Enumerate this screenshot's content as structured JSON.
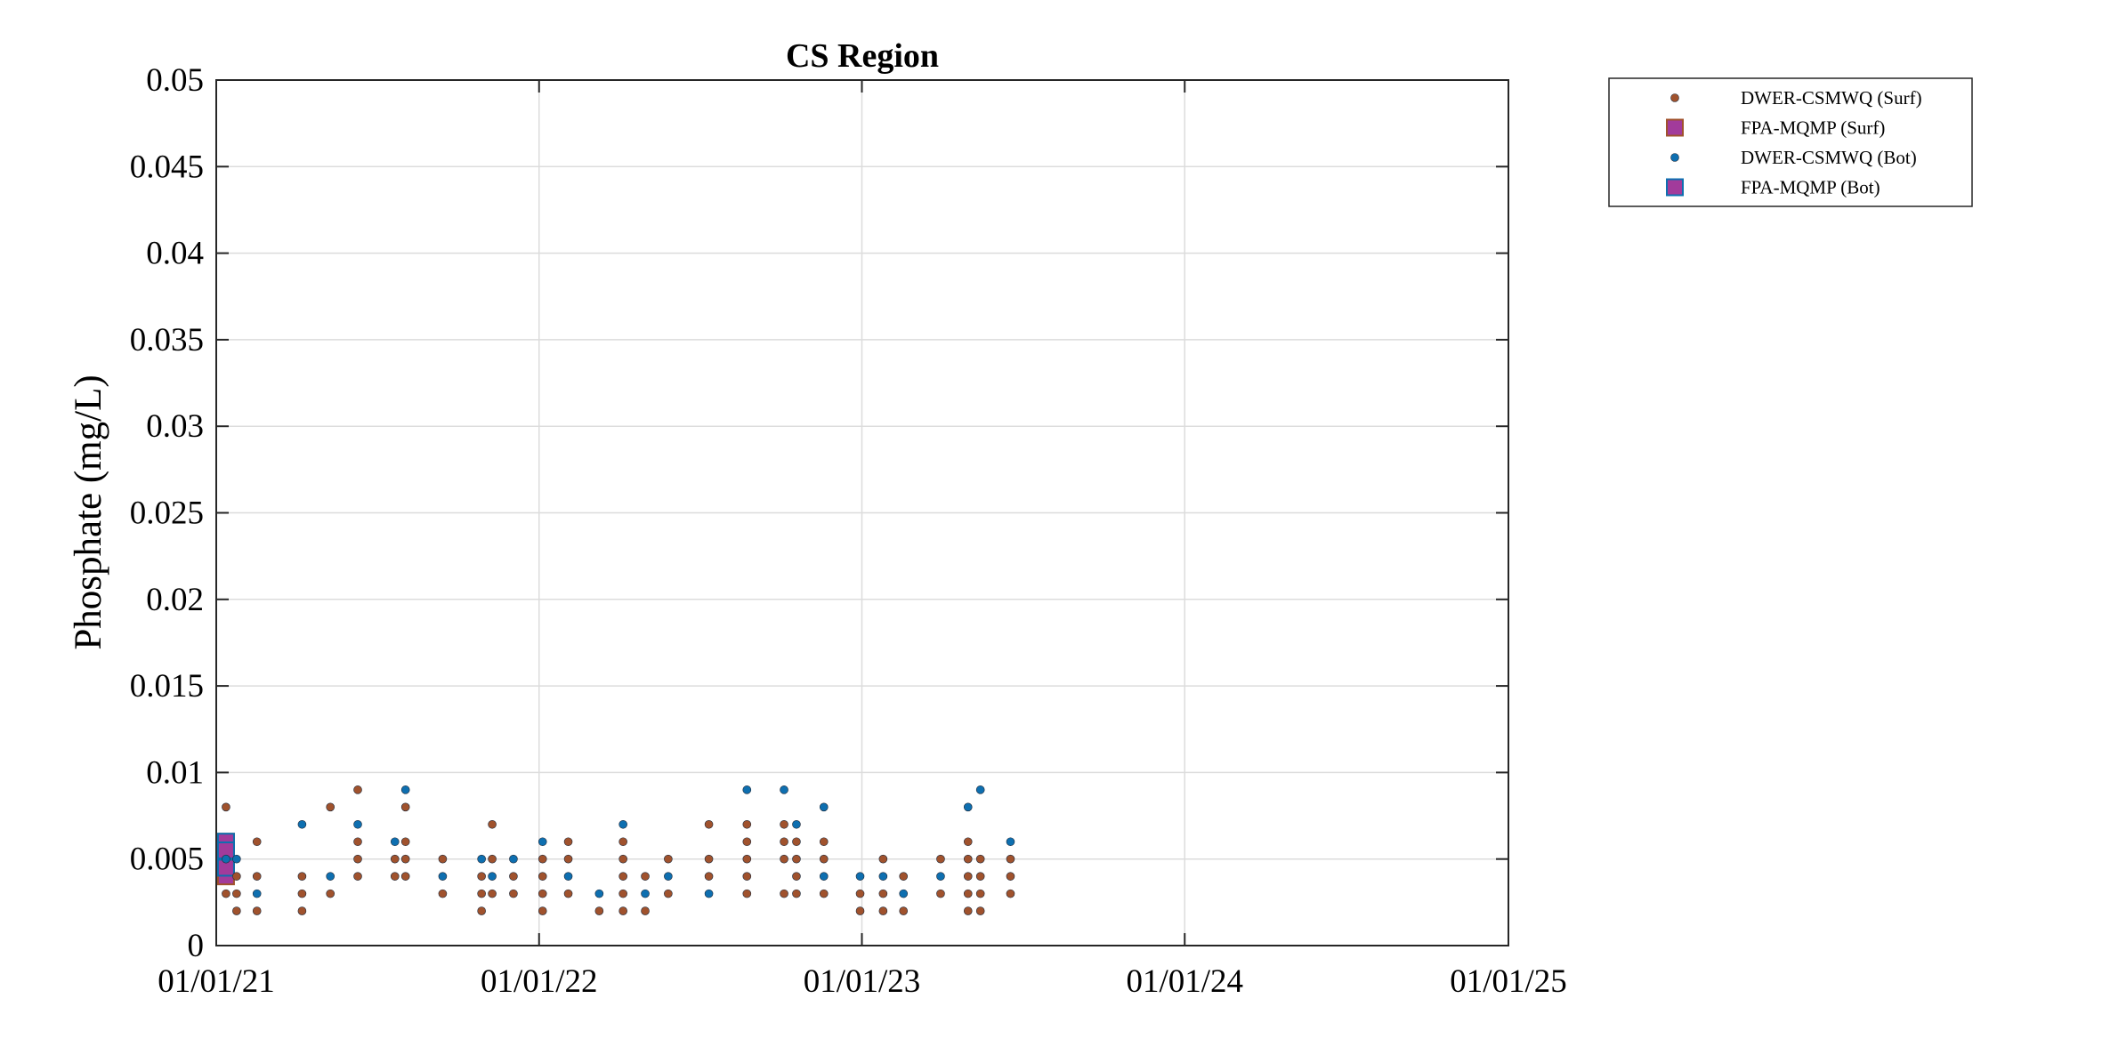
{
  "chart_data": {
    "type": "scatter",
    "title": "CS Region",
    "xlabel": "",
    "ylabel": "Phosphate (mg/L)",
    "x_axis": {
      "type": "date",
      "range": [
        "2021-01-01",
        "2025-01-01"
      ],
      "ticks": [
        "2021-01-01",
        "2022-01-01",
        "2023-01-01",
        "2024-01-01",
        "2025-01-01"
      ],
      "tick_labels": [
        "01/01/21",
        "01/01/22",
        "01/01/23",
        "01/01/24",
        "01/01/25"
      ]
    },
    "y_axis": {
      "range": [
        0,
        0.05
      ],
      "ticks": [
        0,
        0.005,
        0.01,
        0.015,
        0.02,
        0.025,
        0.03,
        0.035,
        0.04,
        0.045,
        0.05
      ],
      "tick_labels": [
        "0",
        "0.005",
        "0.01",
        "0.015",
        "0.02",
        "0.025",
        "0.03",
        "0.035",
        "0.04",
        "0.045",
        "0.05"
      ]
    },
    "grid": true,
    "legend_placement": "outside-top-right",
    "series": [
      {
        "name": "DWER-CSMWQ (Surf)",
        "marker": "dot",
        "color": "#A0522D",
        "points": [
          [
            "2021-01-12",
            0.008
          ],
          [
            "2021-01-12",
            0.003
          ],
          [
            "2021-01-24",
            0.004
          ],
          [
            "2021-01-24",
            0.003
          ],
          [
            "2021-01-24",
            0.002
          ],
          [
            "2021-02-16",
            0.006
          ],
          [
            "2021-02-16",
            0.004
          ],
          [
            "2021-02-16",
            0.002
          ],
          [
            "2021-04-08",
            0.004
          ],
          [
            "2021-04-08",
            0.003
          ],
          [
            "2021-04-08",
            0.002
          ],
          [
            "2021-05-10",
            0.008
          ],
          [
            "2021-05-10",
            0.003
          ],
          [
            "2021-06-10",
            0.009
          ],
          [
            "2021-06-10",
            0.006
          ],
          [
            "2021-06-10",
            0.005
          ],
          [
            "2021-06-10",
            0.004
          ],
          [
            "2021-07-22",
            0.005
          ],
          [
            "2021-07-22",
            0.004
          ],
          [
            "2021-08-03",
            0.008
          ],
          [
            "2021-08-03",
            0.006
          ],
          [
            "2021-08-03",
            0.005
          ],
          [
            "2021-08-03",
            0.004
          ],
          [
            "2021-09-14",
            0.005
          ],
          [
            "2021-09-14",
            0.003
          ],
          [
            "2021-10-28",
            0.004
          ],
          [
            "2021-10-28",
            0.003
          ],
          [
            "2021-10-28",
            0.002
          ],
          [
            "2021-11-09",
            0.007
          ],
          [
            "2021-11-09",
            0.005
          ],
          [
            "2021-11-09",
            0.003
          ],
          [
            "2021-12-03",
            0.004
          ],
          [
            "2021-12-03",
            0.003
          ],
          [
            "2022-01-05",
            0.005
          ],
          [
            "2022-01-05",
            0.004
          ],
          [
            "2022-01-05",
            0.003
          ],
          [
            "2022-01-05",
            0.002
          ],
          [
            "2022-02-03",
            0.006
          ],
          [
            "2022-02-03",
            0.005
          ],
          [
            "2022-02-03",
            0.003
          ],
          [
            "2022-03-10",
            0.002
          ],
          [
            "2022-04-06",
            0.006
          ],
          [
            "2022-04-06",
            0.005
          ],
          [
            "2022-04-06",
            0.004
          ],
          [
            "2022-04-06",
            0.003
          ],
          [
            "2022-04-06",
            0.002
          ],
          [
            "2022-05-01",
            0.004
          ],
          [
            "2022-05-01",
            0.002
          ],
          [
            "2022-05-27",
            0.005
          ],
          [
            "2022-05-27",
            0.003
          ],
          [
            "2022-07-12",
            0.007
          ],
          [
            "2022-07-12",
            0.005
          ],
          [
            "2022-07-12",
            0.004
          ],
          [
            "2022-08-24",
            0.007
          ],
          [
            "2022-08-24",
            0.006
          ],
          [
            "2022-08-24",
            0.005
          ],
          [
            "2022-08-24",
            0.004
          ],
          [
            "2022-08-24",
            0.003
          ],
          [
            "2022-10-05",
            0.007
          ],
          [
            "2022-10-05",
            0.006
          ],
          [
            "2022-10-05",
            0.005
          ],
          [
            "2022-10-05",
            0.003
          ],
          [
            "2022-10-19",
            0.006
          ],
          [
            "2022-10-19",
            0.005
          ],
          [
            "2022-10-19",
            0.004
          ],
          [
            "2022-10-19",
            0.003
          ],
          [
            "2022-11-19",
            0.006
          ],
          [
            "2022-11-19",
            0.005
          ],
          [
            "2022-11-19",
            0.003
          ],
          [
            "2022-12-30",
            0.003
          ],
          [
            "2022-12-30",
            0.002
          ],
          [
            "2023-01-25",
            0.005
          ],
          [
            "2023-01-25",
            0.003
          ],
          [
            "2023-01-25",
            0.002
          ],
          [
            "2023-02-17",
            0.004
          ],
          [
            "2023-02-17",
            0.002
          ],
          [
            "2023-03-31",
            0.005
          ],
          [
            "2023-03-31",
            0.003
          ],
          [
            "2023-05-01",
            0.006
          ],
          [
            "2023-05-01",
            0.005
          ],
          [
            "2023-05-01",
            0.004
          ],
          [
            "2023-05-01",
            0.003
          ],
          [
            "2023-05-01",
            0.002
          ],
          [
            "2023-05-15",
            0.005
          ],
          [
            "2023-05-15",
            0.004
          ],
          [
            "2023-05-15",
            0.003
          ],
          [
            "2023-05-15",
            0.002
          ],
          [
            "2023-06-18",
            0.005
          ],
          [
            "2023-06-18",
            0.004
          ],
          [
            "2023-06-18",
            0.003
          ]
        ]
      },
      {
        "name": "FPA-MQMP (Surf)",
        "marker": "square",
        "color": "#A0522D",
        "fill": "#A23B9B",
        "points": [
          [
            "2021-01-12",
            0.006
          ],
          [
            "2021-01-12",
            0.005
          ],
          [
            "2021-01-12",
            0.004
          ]
        ]
      },
      {
        "name": "DWER-CSMWQ (Bot)",
        "marker": "dot",
        "color": "#0E6FB0",
        "points": [
          [
            "2021-01-12",
            0.005
          ],
          [
            "2021-01-24",
            0.005
          ],
          [
            "2021-02-16",
            0.003
          ],
          [
            "2021-04-08",
            0.007
          ],
          [
            "2021-05-10",
            0.004
          ],
          [
            "2021-06-10",
            0.007
          ],
          [
            "2021-07-22",
            0.006
          ],
          [
            "2021-08-03",
            0.009
          ],
          [
            "2021-09-14",
            0.004
          ],
          [
            "2021-10-28",
            0.005
          ],
          [
            "2021-11-09",
            0.004
          ],
          [
            "2021-12-03",
            0.005
          ],
          [
            "2022-01-05",
            0.006
          ],
          [
            "2022-02-03",
            0.004
          ],
          [
            "2022-03-10",
            0.003
          ],
          [
            "2022-04-06",
            0.007
          ],
          [
            "2022-05-01",
            0.003
          ],
          [
            "2022-05-27",
            0.004
          ],
          [
            "2022-07-12",
            0.003
          ],
          [
            "2022-08-24",
            0.009
          ],
          [
            "2022-10-05",
            0.009
          ],
          [
            "2022-10-19",
            0.007
          ],
          [
            "2022-11-19",
            0.008
          ],
          [
            "2022-11-19",
            0.004
          ],
          [
            "2022-12-30",
            0.004
          ],
          [
            "2023-01-25",
            0.004
          ],
          [
            "2023-02-17",
            0.003
          ],
          [
            "2023-03-31",
            0.004
          ],
          [
            "2023-05-01",
            0.008
          ],
          [
            "2023-05-15",
            0.009
          ],
          [
            "2023-06-18",
            0.006
          ]
        ]
      },
      {
        "name": "FPA-MQMP (Bot)",
        "marker": "square",
        "color": "#0E6FB0",
        "fill": "#A23B9B",
        "points": [
          [
            "2021-01-12",
            0.006
          ],
          [
            "2021-01-12",
            0.0055
          ],
          [
            "2021-01-12",
            0.0045
          ]
        ]
      }
    ]
  }
}
